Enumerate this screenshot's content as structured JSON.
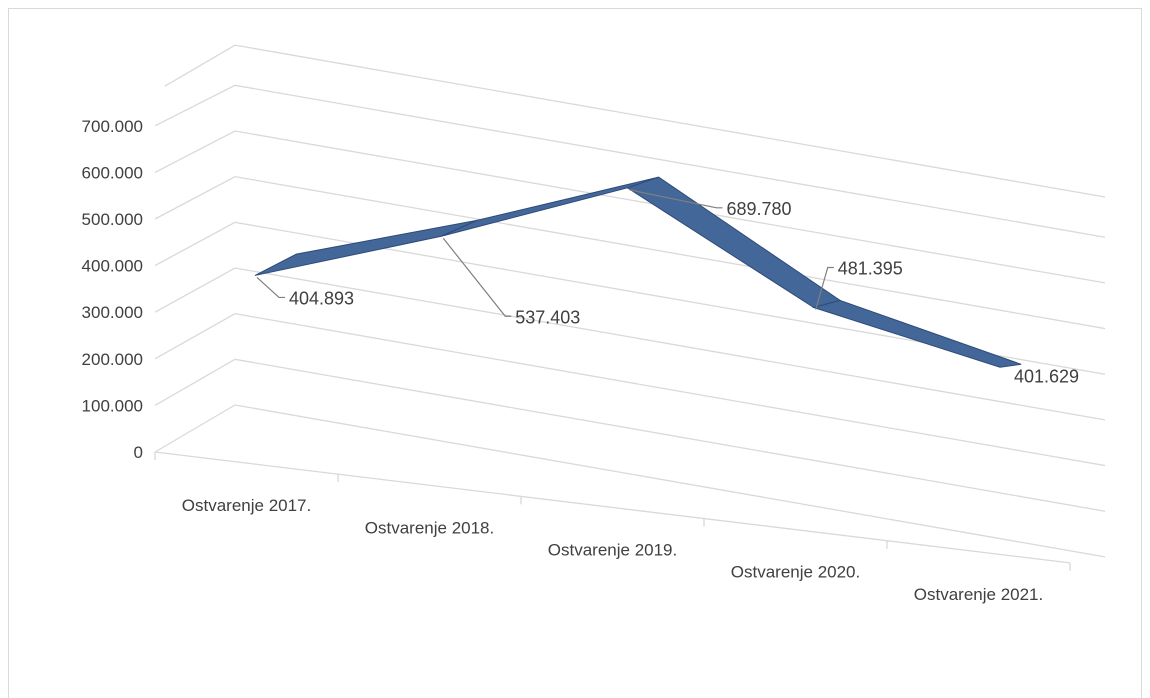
{
  "chart_data": {
    "type": "line",
    "title": "",
    "xlabel": "",
    "ylabel": "",
    "categories": [
      "Ostvarenje 2017.",
      "Ostvarenje 2018.",
      "Ostvarenje 2019.",
      "Ostvarenje 2020.",
      "Ostvarenje 2021."
    ],
    "series": [
      {
        "values": [
          404893,
          537403,
          689780,
          481395,
          401629
        ],
        "labels": [
          "404.893",
          "537.403",
          "689.780",
          "481.395",
          "401.629"
        ]
      }
    ],
    "yticks": [
      "0",
      "100.000",
      "200.000",
      "300.000",
      "400.000",
      "500.000",
      "600.000",
      "700.000"
    ],
    "ylim": [
      0,
      800000
    ],
    "grid": true,
    "legend": "none",
    "perspective": "3d",
    "colors": {
      "series": "#44679a",
      "series_top": "#2e4b78",
      "grid": "#d9d9d9",
      "text": "#404040"
    }
  }
}
